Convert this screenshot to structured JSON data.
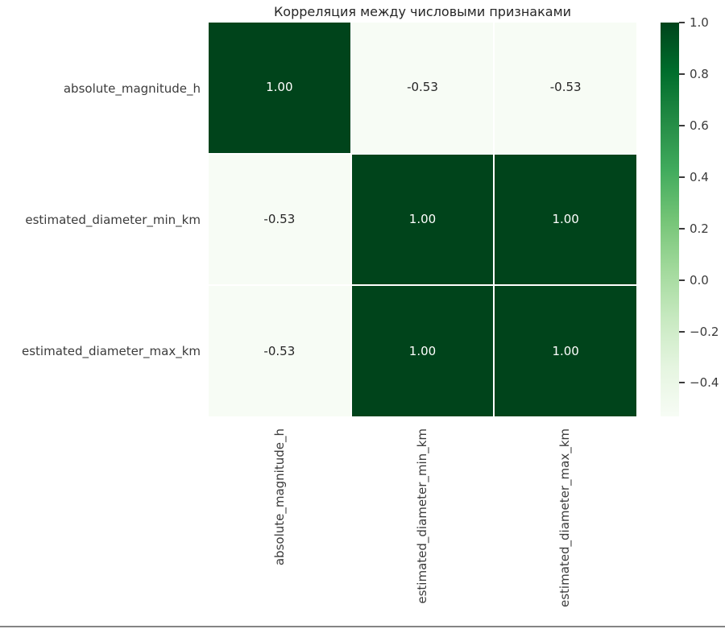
{
  "chart_data": {
    "type": "heatmap",
    "title": "Корреляция между числовыми признаками",
    "labels": [
      "absolute_magnitude_h",
      "estimated_diameter_min_km",
      "estimated_diameter_max_km"
    ],
    "matrix": [
      [
        1.0,
        -0.53,
        -0.53
      ],
      [
        -0.53,
        1.0,
        1.0
      ],
      [
        -0.53,
        1.0,
        1.0
      ]
    ],
    "cell_labels": [
      [
        "1.00",
        "-0.53",
        "-0.53"
      ],
      [
        "-0.53",
        "1.00",
        "1.00"
      ],
      [
        "-0.53",
        "1.00",
        "1.00"
      ]
    ],
    "vmin": -0.53,
    "vmax": 1.0,
    "colormap": "Greens",
    "colorbar_position": "right",
    "colorbar_ticks": [
      1.0,
      0.8,
      0.6,
      0.4,
      0.2,
      0.0,
      -0.2,
      -0.4
    ],
    "grid": "white cell separators"
  },
  "colors": {
    "cmap_high": "#00441b",
    "cmap_low": "#f7fcf5",
    "greens_stops": [
      "#f7fcf5",
      "#e5f5e0",
      "#c7e9c0",
      "#a1d99b",
      "#74c476",
      "#41ab5d",
      "#238b45",
      "#006d2c",
      "#00441b"
    ],
    "annot_on_dark": "#ffffff",
    "annot_on_light": "#262626",
    "tick_label": "#3b3b3b",
    "title": "#262626",
    "grid_line": "#ffffff",
    "bottom_rule": "#848484"
  }
}
